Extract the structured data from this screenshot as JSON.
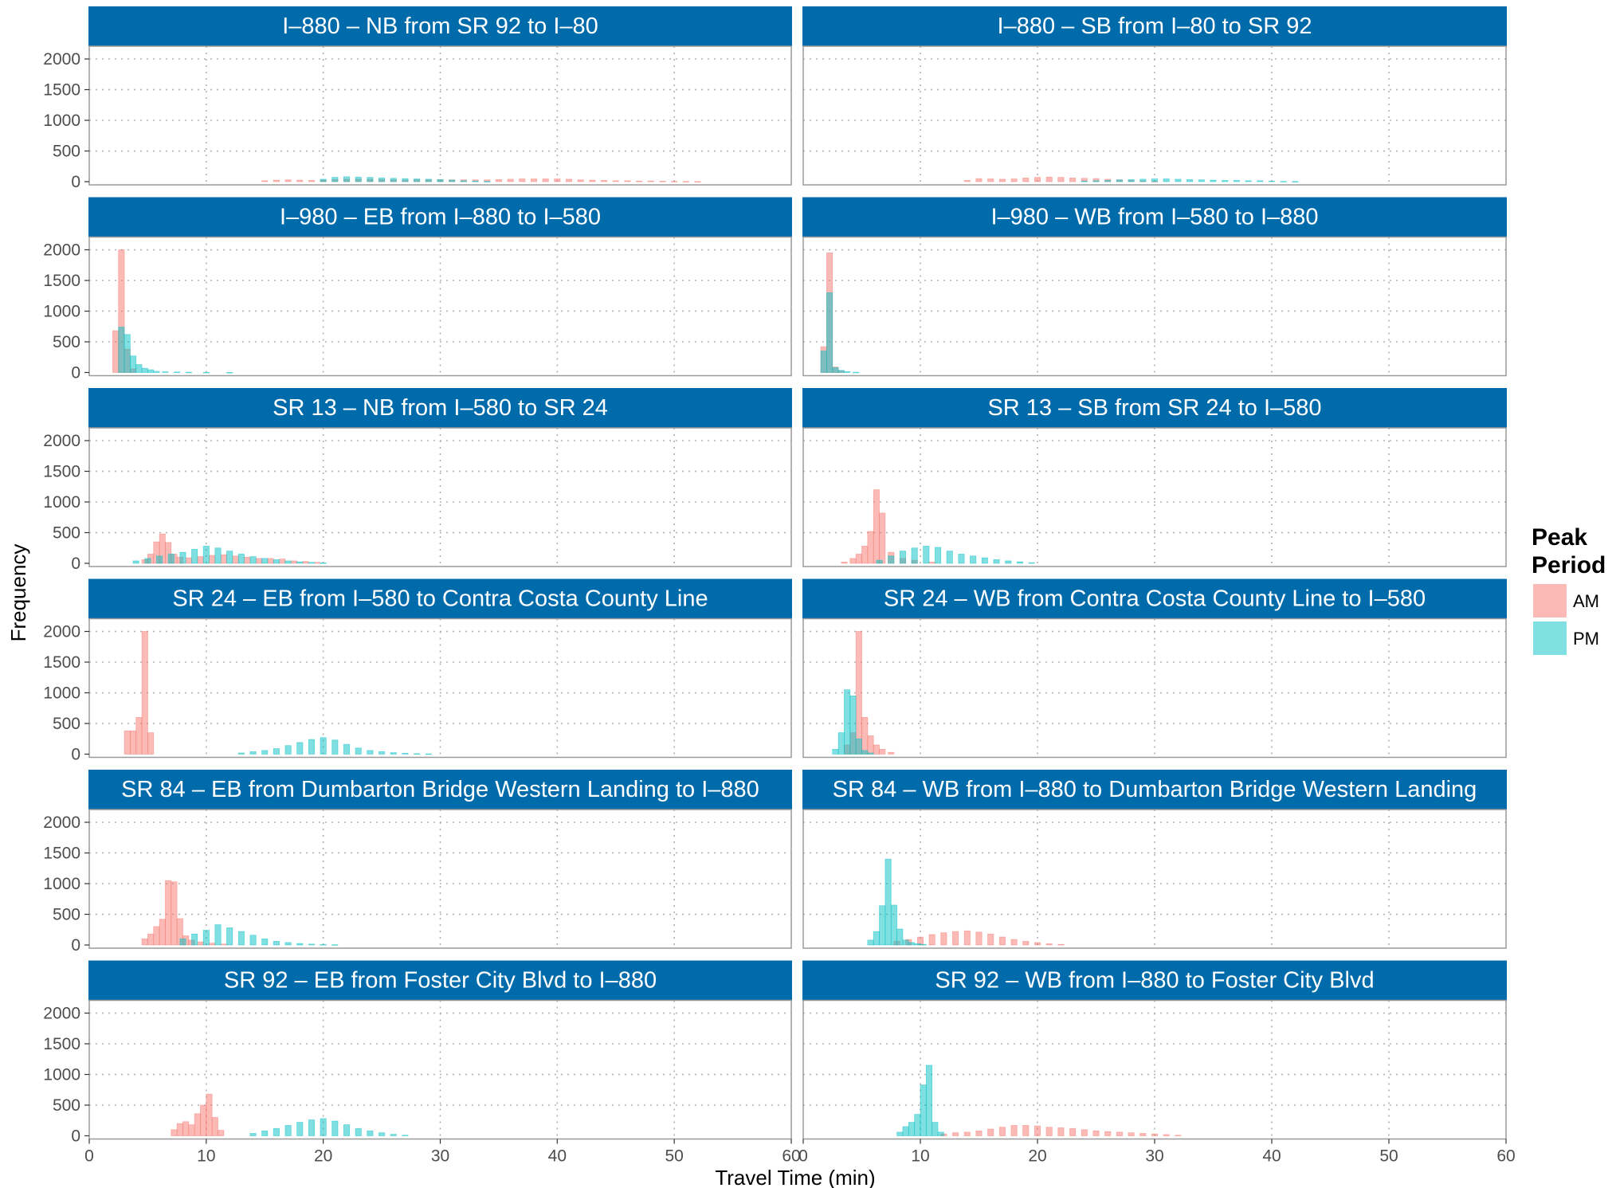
{
  "chart_data": {
    "type": "bar",
    "subtype": "faceted-histogram",
    "xlabel": "Travel Time (min)",
    "ylabel": "Frequency",
    "xlim": [
      0,
      60
    ],
    "ylim": [
      0,
      2000
    ],
    "x_ticks": [
      0,
      10,
      20,
      30,
      40,
      50,
      60
    ],
    "y_ticks": [
      0,
      500,
      1000,
      1500,
      2000
    ],
    "grid": "dotted",
    "bin_width": 0.5,
    "legend": {
      "title": "Peak Period",
      "position": "right",
      "entries": [
        {
          "name": "AM",
          "color": "#F8766D"
        },
        {
          "name": "PM",
          "color": "#00BFC4"
        }
      ]
    },
    "colors": {
      "strip_background": "#006BAB",
      "panel_border": "#9a9a9a",
      "grid": "#b0b0b0"
    },
    "panels": [
      {
        "title": "I–880 – NB from SR 92 to I–80",
        "series": [
          {
            "name": "AM",
            "x": [
              15,
              16,
              17,
              18,
              19,
              20,
              21,
              22,
              23,
              24,
              25,
              26,
              27,
              28,
              29,
              30,
              31,
              32,
              33,
              34,
              35,
              36,
              37,
              38,
              39,
              40,
              41,
              42,
              43,
              44,
              45,
              46,
              47,
              48,
              49,
              50,
              51,
              52
            ],
            "y": [
              15,
              25,
              30,
              25,
              20,
              25,
              35,
              40,
              40,
              40,
              35,
              30,
              25,
              30,
              30,
              30,
              30,
              30,
              30,
              30,
              35,
              40,
              45,
              45,
              45,
              45,
              40,
              30,
              25,
              20,
              15,
              15,
              10,
              10,
              8,
              6,
              4,
              2
            ]
          },
          {
            "name": "PM",
            "x": [
              20,
              21,
              22,
              23,
              24,
              25,
              26,
              27,
              28,
              29,
              30,
              31,
              32,
              33,
              34
            ],
            "y": [
              40,
              70,
              80,
              75,
              70,
              60,
              55,
              50,
              45,
              40,
              35,
              25,
              15,
              10,
              5
            ]
          }
        ]
      },
      {
        "title": "I–880 – SB from I–80 to SR 92",
        "series": [
          {
            "name": "AM",
            "x": [
              14,
              15,
              16,
              17,
              18,
              19,
              20,
              21,
              22,
              23,
              24,
              25,
              26,
              27,
              28,
              29,
              30
            ],
            "y": [
              20,
              50,
              45,
              40,
              45,
              60,
              70,
              75,
              70,
              60,
              55,
              50,
              40,
              30,
              20,
              10,
              5
            ]
          },
          {
            "name": "PM",
            "x": [
              24,
              25,
              26,
              27,
              28,
              29,
              30,
              31,
              32,
              33,
              34,
              35,
              36,
              37,
              38,
              39,
              40,
              41,
              42
            ],
            "y": [
              10,
              15,
              20,
              30,
              35,
              40,
              45,
              45,
              40,
              35,
              30,
              25,
              20,
              20,
              15,
              15,
              10,
              5,
              3
            ]
          }
        ]
      },
      {
        "title": "I–980 – EB from I–880 to I–580",
        "series": [
          {
            "name": "AM",
            "x": [
              2.25,
              2.75,
              3.25,
              3.75
            ],
            "y": [
              680,
              2000,
              380,
              60
            ]
          },
          {
            "name": "PM",
            "x": [
              2.75,
              3.25,
              3.75,
              4.25,
              4.75,
              5.25,
              5.75,
              6.5,
              7.5,
              8.5,
              10,
              12
            ],
            "y": [
              740,
              620,
              270,
              130,
              70,
              45,
              20,
              12,
              8,
              5,
              3,
              2
            ]
          }
        ]
      },
      {
        "title": "I–980 – WB from I–580 to I–880",
        "series": [
          {
            "name": "AM",
            "x": [
              1.75,
              2.25,
              2.75,
              3.25
            ],
            "y": [
              420,
              1950,
              90,
              25
            ]
          },
          {
            "name": "PM",
            "x": [
              1.75,
              2.25,
              2.75,
              3.25,
              3.75,
              4.5
            ],
            "y": [
              350,
              1300,
              80,
              35,
              15,
              5
            ]
          }
        ]
      },
      {
        "title": "SR 13 – NB from I–580 to SR 24",
        "series": [
          {
            "name": "AM",
            "x": [
              4.75,
              5.25,
              5.75,
              6.25,
              6.75,
              7.25,
              7.75,
              8.5,
              9.5,
              10.5,
              11.5,
              12.5,
              13.5,
              14.5,
              15.5,
              16.5,
              17.5,
              18.5,
              19.5
            ],
            "y": [
              60,
              150,
              350,
              480,
              340,
              150,
              100,
              90,
              110,
              130,
              140,
              120,
              100,
              80,
              80,
              70,
              40,
              30,
              15
            ]
          },
          {
            "name": "PM",
            "x": [
              4,
              5,
              6,
              7,
              8,
              9,
              10,
              11,
              12,
              13,
              14,
              15,
              16,
              17,
              18,
              19,
              20
            ],
            "y": [
              40,
              80,
              120,
              150,
              180,
              230,
              280,
              250,
              200,
              150,
              110,
              80,
              60,
              40,
              25,
              15,
              8
            ]
          }
        ]
      },
      {
        "title": "SR 13 – SB from SR 24 to I–580",
        "series": [
          {
            "name": "AM",
            "x": [
              3.5,
              4.25,
              4.75,
              5.25,
              5.75,
              6.25,
              6.75,
              7.5,
              8.5,
              9.5,
              11
            ],
            "y": [
              20,
              80,
              150,
              280,
              520,
              1200,
              820,
              180,
              80,
              50,
              20
            ]
          },
          {
            "name": "PM",
            "x": [
              6.5,
              7.5,
              8.5,
              9.5,
              10.5,
              11.5,
              12.5,
              13.5,
              14.5,
              15.5,
              16.5,
              17.5,
              18.5,
              19.5
            ],
            "y": [
              50,
              120,
              200,
              250,
              280,
              260,
              200,
              150,
              120,
              90,
              60,
              40,
              25,
              10
            ]
          }
        ]
      },
      {
        "title": "SR 24 – EB from I–580 to Contra Costa County Line",
        "series": [
          {
            "name": "AM",
            "x": [
              3.25,
              3.75,
              4.25,
              4.75,
              5.25
            ],
            "y": [
              380,
              380,
              600,
              2000,
              350
            ]
          },
          {
            "name": "PM",
            "x": [
              13,
              14,
              15,
              16,
              17,
              18,
              19,
              20,
              21,
              22,
              23,
              24,
              25,
              26,
              27,
              28,
              29
            ],
            "y": [
              20,
              40,
              60,
              90,
              140,
              190,
              240,
              270,
              230,
              160,
              100,
              60,
              40,
              25,
              15,
              8,
              5
            ]
          }
        ]
      },
      {
        "title": "SR 24 – WB from Contra Costa County Line to I–580",
        "series": [
          {
            "name": "AM",
            "x": [
              3.75,
              4.25,
              4.75,
              5.25,
              5.75,
              6.25,
              6.75,
              7.5
            ],
            "y": [
              150,
              350,
              2000,
              600,
              300,
              150,
              80,
              30
            ]
          },
          {
            "name": "PM",
            "x": [
              2.75,
              3.25,
              3.75,
              4.25,
              4.75,
              5.25,
              5.75
            ],
            "y": [
              80,
              350,
              1050,
              950,
              250,
              60,
              20
            ]
          }
        ]
      },
      {
        "title": "SR 84 – EB from Dumbarton Bridge Western Landing to I–880",
        "series": [
          {
            "name": "AM",
            "x": [
              4.75,
              5.25,
              5.75,
              6.25,
              6.75,
              7.25,
              7.75,
              8.25,
              8.75,
              9.5,
              10.5,
              11.5
            ],
            "y": [
              100,
              180,
              300,
              420,
              1050,
              1030,
              430,
              150,
              80,
              50,
              30,
              15
            ]
          },
          {
            "name": "PM",
            "x": [
              8,
              9,
              10,
              11,
              12,
              13,
              14,
              15,
              16,
              17,
              18,
              19,
              20,
              21
            ],
            "y": [
              100,
              180,
              240,
              330,
              280,
              220,
              160,
              100,
              60,
              40,
              25,
              15,
              8,
              5
            ]
          }
        ]
      },
      {
        "title": "SR 84 – WB from I–880 to Dumbarton Bridge Western Landing",
        "series": [
          {
            "name": "AM",
            "x": [
              8,
              9,
              10,
              11,
              12,
              13,
              14,
              15,
              16,
              17,
              18,
              19,
              20,
              21,
              22
            ],
            "y": [
              60,
              90,
              130,
              170,
              200,
              220,
              230,
              210,
              180,
              130,
              90,
              60,
              40,
              20,
              10
            ]
          },
          {
            "name": "PM",
            "x": [
              5.75,
              6.25,
              6.75,
              7.25,
              7.75,
              8.25,
              8.75,
              9.25,
              9.75,
              10.25
            ],
            "y": [
              80,
              220,
              640,
              1400,
              650,
              260,
              80,
              40,
              20,
              10
            ]
          }
        ]
      },
      {
        "title": "SR 92 – EB from Foster City Blvd to I–880",
        "series": [
          {
            "name": "AM",
            "x": [
              7.25,
              7.75,
              8.25,
              8.75,
              9.25,
              9.75,
              10.25,
              10.75,
              11.25
            ],
            "y": [
              100,
              200,
              230,
              180,
              360,
              500,
              680,
              300,
              90
            ]
          },
          {
            "name": "PM",
            "x": [
              14,
              15,
              16,
              17,
              18,
              19,
              20,
              21,
              22,
              23,
              24,
              25,
              26,
              27
            ],
            "y": [
              40,
              80,
              120,
              170,
              220,
              260,
              280,
              240,
              180,
              120,
              80,
              50,
              25,
              10
            ]
          }
        ]
      },
      {
        "title": "SR 92 – WB from I–880 to Foster City Blvd",
        "series": [
          {
            "name": "AM",
            "x": [
              12,
              13,
              14,
              15,
              16,
              17,
              18,
              19,
              20,
              21,
              22,
              23,
              24,
              25,
              26,
              27,
              28,
              29,
              30,
              31,
              32
            ],
            "y": [
              30,
              50,
              60,
              80,
              110,
              140,
              170,
              170,
              160,
              140,
              130,
              120,
              100,
              80,
              70,
              60,
              50,
              40,
              30,
              20,
              10
            ]
          },
          {
            "name": "PM",
            "x": [
              8.25,
              8.75,
              9.25,
              9.75,
              10.25,
              10.75,
              11.25,
              11.75
            ],
            "y": [
              60,
              150,
              220,
              350,
              830,
              1150,
              220,
              60
            ]
          }
        ]
      }
    ]
  }
}
